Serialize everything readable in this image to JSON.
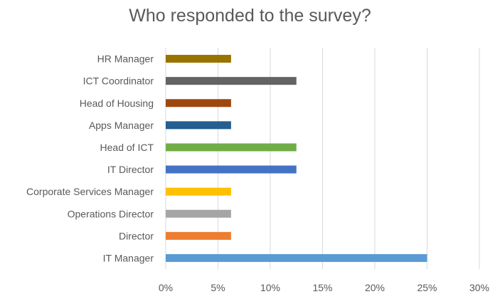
{
  "chart_data": {
    "type": "bar",
    "orientation": "horizontal",
    "title": "Who responded to the survey?",
    "xlabel": "",
    "ylabel": "",
    "categories": [
      "IT Manager",
      "Director",
      "Operations Director",
      "Corporate Services Manager",
      "IT Director",
      "Head of ICT",
      "Apps Manager",
      "Head of Housing",
      "ICT Coordinator",
      "HR Manager"
    ],
    "values": [
      25,
      6.25,
      6.25,
      6.25,
      12.5,
      12.5,
      6.25,
      6.25,
      12.5,
      6.25
    ],
    "colors": [
      "#5B9BD5",
      "#ED7D31",
      "#A5A5A5",
      "#FFC000",
      "#4472C4",
      "#70AD47",
      "#255E91",
      "#9E480E",
      "#636363",
      "#997300"
    ],
    "xlim": [
      0,
      30
    ],
    "xticks": [
      0,
      5,
      10,
      15,
      20,
      25,
      30
    ],
    "tick_labels": [
      "0%",
      "5%",
      "10%",
      "15%",
      "20%",
      "25%",
      "30%"
    ],
    "gridlines": "vertical",
    "gridline_color": "#D9D9D9",
    "legend": "none"
  }
}
